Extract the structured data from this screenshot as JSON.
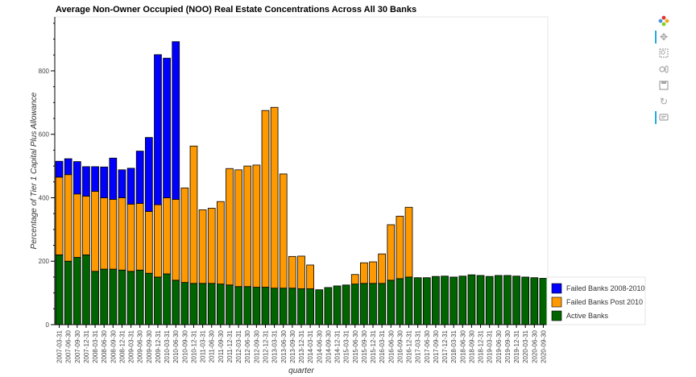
{
  "chart_data": {
    "type": "bar",
    "stacked": true,
    "title": "Average Non-Owner Occupied (NOO) Real Estate Concentrations Across All 30 Banks",
    "xlabel": "quarter",
    "ylabel": "Percentage of Tier 1 Capital Plus Allowance",
    "ylim": [
      0,
      970
    ],
    "yticks": [
      0,
      200,
      400,
      600,
      800
    ],
    "legend_position": "bottom-right",
    "categories": [
      "2007-03-31",
      "2007-06-30",
      "2007-09-30",
      "2007-12-31",
      "2008-03-31",
      "2008-06-30",
      "2008-09-30",
      "2008-12-31",
      "2009-03-31",
      "2009-06-30",
      "2009-09-30",
      "2009-12-31",
      "2010-03-31",
      "2010-06-30",
      "2010-09-30",
      "2010-12-31",
      "2011-03-31",
      "2011-06-30",
      "2011-09-30",
      "2011-12-31",
      "2012-03-31",
      "2012-06-30",
      "2012-09-30",
      "2012-12-31",
      "2013-03-31",
      "2013-06-30",
      "2013-09-30",
      "2013-12-31",
      "2014-03-31",
      "2014-06-30",
      "2014-09-30",
      "2014-12-31",
      "2015-03-31",
      "2015-06-30",
      "2015-09-30",
      "2015-12-31",
      "2016-03-31",
      "2016-06-30",
      "2016-09-30",
      "2016-12-31",
      "2017-03-31",
      "2017-06-30",
      "2017-09-30",
      "2017-12-31",
      "2018-03-31",
      "2018-06-30",
      "2018-09-30",
      "2018-12-31",
      "2019-03-31",
      "2019-06-30",
      "2019-09-30",
      "2019-12-31",
      "2020-03-31",
      "2020-06-30",
      "2020-09-30"
    ],
    "series": [
      {
        "name": "Active Banks",
        "color": "#006400",
        "values": [
          220,
          200,
          212,
          220,
          168,
          175,
          175,
          172,
          168,
          172,
          162,
          150,
          160,
          140,
          133,
          130,
          130,
          130,
          128,
          125,
          120,
          120,
          118,
          118,
          115,
          115,
          115,
          113,
          113,
          110,
          117,
          122,
          125,
          128,
          130,
          130,
          130,
          140,
          145,
          150,
          148,
          148,
          152,
          153,
          150,
          153,
          157,
          155,
          152,
          155,
          155,
          153,
          150,
          148,
          146
        ]
      },
      {
        "name": "Failed Banks Post 2010",
        "color": "#ff9900",
        "values": [
          245,
          273,
          200,
          185,
          252,
          225,
          220,
          228,
          212,
          210,
          195,
          228,
          240,
          255,
          298,
          433,
          232,
          237,
          260,
          367,
          368,
          380,
          385,
          557,
          570,
          360,
          100,
          103,
          75,
          0,
          0,
          0,
          0,
          30,
          65,
          68,
          93,
          175,
          197,
          220,
          0,
          0,
          0,
          0,
          0,
          0,
          0,
          0,
          0,
          0,
          0,
          0,
          0,
          0,
          0
        ]
      },
      {
        "name": "Failed Banks 2008-2010",
        "color": "#0000ff",
        "values": [
          50,
          50,
          102,
          93,
          78,
          97,
          130,
          88,
          113,
          165,
          233,
          473,
          440,
          497,
          0,
          0,
          0,
          0,
          0,
          0,
          0,
          0,
          0,
          0,
          0,
          0,
          0,
          0,
          0,
          0,
          0,
          0,
          0,
          0,
          0,
          0,
          0,
          0,
          0,
          0,
          0,
          0,
          0,
          0,
          0,
          0,
          0,
          0,
          0,
          0,
          0,
          0,
          0,
          0,
          0
        ]
      }
    ],
    "legend": [
      "Failed Banks 2008-2010",
      "Failed Banks Post 2010",
      "Active Banks"
    ]
  },
  "toolbar": {
    "logo": "bokeh-logo-icon",
    "tools": [
      "pan-icon",
      "box-zoom-icon",
      "wheel-zoom-icon",
      "save-icon",
      "reset-icon",
      "hover-icon"
    ]
  }
}
